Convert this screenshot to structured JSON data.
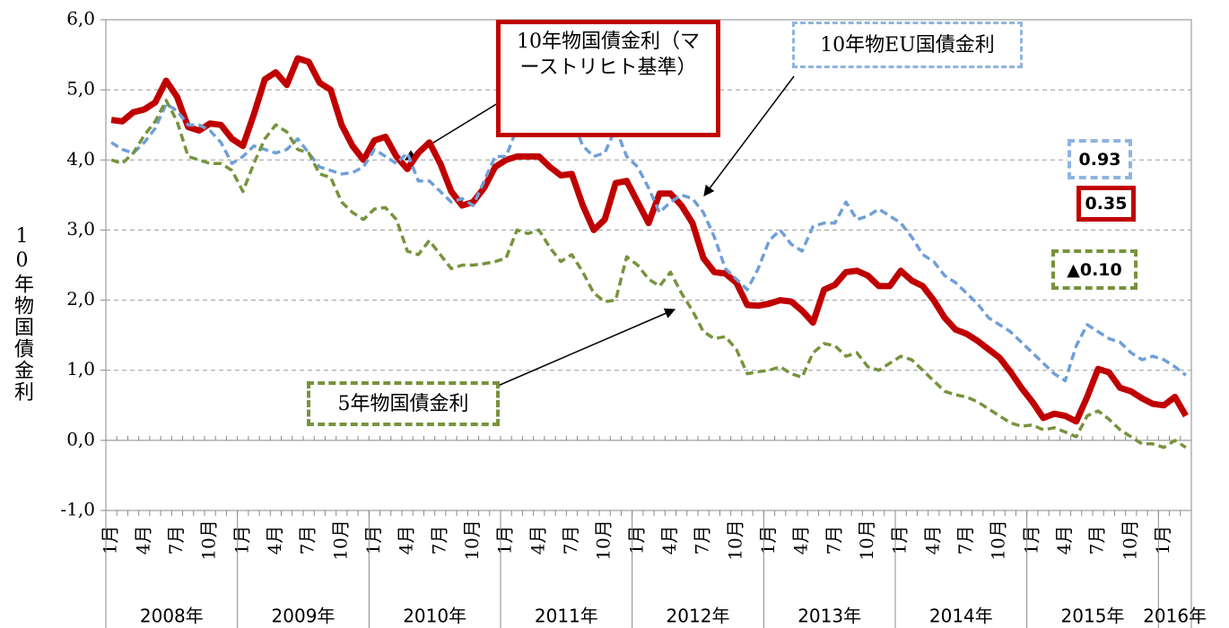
{
  "chart_data": {
    "type": "line",
    "y_label": "10年物国債金利",
    "categories": [
      "1月",
      null,
      null,
      "4月",
      null,
      null,
      "7月",
      null,
      null,
      "10月",
      null,
      null,
      "1月",
      null,
      null,
      "4月",
      null,
      null,
      "7月",
      null,
      null,
      "10月",
      null,
      null,
      "1月",
      null,
      null,
      "4月",
      null,
      null,
      "7月",
      null,
      null,
      "10月",
      null,
      null,
      "1月",
      null,
      null,
      "4月",
      null,
      null,
      "7月",
      null,
      null,
      "10月",
      null,
      null,
      "1月",
      null,
      null,
      "4月",
      null,
      null,
      "7月",
      null,
      null,
      "10月",
      null,
      null,
      "1月",
      null,
      null,
      "4月",
      null,
      null,
      "7月",
      null,
      null,
      "10月",
      null,
      null,
      "1月",
      null,
      null,
      "4月",
      null,
      null,
      "7月",
      null,
      null,
      "10月",
      null,
      null,
      "1月",
      null,
      null,
      "4月",
      null,
      null,
      "7月",
      null,
      null,
      "10月",
      null,
      null,
      "1月",
      null,
      null
    ],
    "year_labels": [
      "2008年",
      "2009年",
      "2010年",
      "2011年",
      "2012年",
      "2013年",
      "2014年",
      "2015年",
      "2016年"
    ],
    "ylim": [
      -1,
      6
    ],
    "yticks": [
      {
        "value": -1,
        "label": "-1,0"
      },
      {
        "value": 0,
        "label": "0,0"
      },
      {
        "value": 1,
        "label": "1,0"
      },
      {
        "value": 2,
        "label": "2,0"
      },
      {
        "value": 3,
        "label": "3,0"
      },
      {
        "value": 4,
        "label": "4,0"
      },
      {
        "value": 5,
        "label": "5,0"
      },
      {
        "value": 6,
        "label": "6,0"
      }
    ],
    "grid": true,
    "series": [
      {
        "name": "10年物国債金利（マーストリヒト基準）",
        "color": "#c00000",
        "dash": false,
        "values": [
          4.57,
          4.55,
          4.68,
          4.72,
          4.82,
          5.13,
          4.9,
          4.47,
          4.42,
          4.52,
          4.5,
          4.3,
          4.2,
          4.65,
          5.15,
          5.25,
          5.07,
          5.45,
          5.4,
          5.1,
          5.0,
          4.5,
          4.2,
          4.0,
          4.28,
          4.33,
          4.05,
          3.87,
          4.1,
          4.25,
          3.95,
          3.55,
          3.35,
          3.4,
          3.6,
          3.9,
          4.0,
          4.05,
          4.05,
          4.05,
          3.9,
          3.78,
          3.8,
          3.35,
          3.0,
          3.15,
          3.67,
          3.7,
          3.4,
          3.1,
          3.52,
          3.52,
          3.35,
          3.1,
          2.6,
          2.4,
          2.38,
          2.25,
          1.93,
          1.92,
          1.95,
          2.0,
          1.98,
          1.85,
          1.68,
          2.15,
          2.22,
          2.4,
          2.42,
          2.35,
          2.2,
          2.2,
          2.42,
          2.28,
          2.2,
          2.0,
          1.75,
          1.58,
          1.52,
          1.42,
          1.3,
          1.18,
          0.98,
          0.75,
          0.55,
          0.32,
          0.38,
          0.35,
          0.27,
          0.62,
          1.02,
          0.97,
          0.75,
          0.7,
          0.6,
          0.52,
          0.5,
          0.62,
          0.35
        ],
        "value_labels": [
          null,
          null,
          null,
          null,
          null,
          null,
          null,
          null,
          null,
          null,
          null,
          null,
          null,
          null,
          null,
          null,
          null,
          null,
          null,
          null,
          null,
          null,
          null,
          null,
          null,
          null,
          null,
          null,
          null,
          null,
          null,
          null,
          null,
          null,
          null,
          null,
          null,
          null,
          null,
          null,
          null,
          null,
          null,
          null,
          null,
          null,
          null,
          null,
          null,
          null,
          null,
          null,
          null,
          null,
          null,
          null,
          null,
          null,
          null,
          null,
          null,
          null,
          null,
          null,
          null,
          null,
          null,
          null,
          null,
          null,
          null,
          null,
          null,
          null,
          null,
          null,
          null,
          null,
          null,
          null,
          null,
          null,
          null,
          null,
          null,
          null,
          null,
          null,
          null,
          null,
          null,
          null,
          null,
          null,
          null,
          null,
          null,
          null,
          "0.35"
        ]
      },
      {
        "name": "10年物EU国債金利",
        "color": "#6f9fd8",
        "dash": true,
        "values": [
          4.25,
          4.15,
          4.1,
          4.25,
          4.45,
          4.8,
          4.7,
          4.5,
          4.5,
          4.42,
          4.25,
          3.95,
          4.05,
          4.2,
          4.15,
          4.1,
          4.15,
          4.3,
          4.1,
          3.9,
          3.85,
          3.8,
          3.82,
          3.9,
          4.15,
          4.05,
          3.95,
          4.1,
          3.7,
          3.7,
          3.55,
          3.4,
          3.45,
          3.35,
          3.7,
          4.05,
          4.05,
          4.45,
          4.5,
          4.65,
          4.4,
          4.35,
          4.6,
          4.2,
          4.05,
          4.1,
          4.45,
          4.05,
          3.9,
          3.6,
          3.25,
          3.4,
          3.5,
          3.45,
          3.25,
          2.9,
          2.45,
          2.3,
          2.15,
          2.45,
          2.85,
          3.0,
          2.8,
          2.7,
          3.05,
          3.1,
          3.1,
          3.4,
          3.15,
          3.2,
          3.3,
          3.2,
          3.1,
          2.9,
          2.65,
          2.55,
          2.35,
          2.25,
          2.1,
          1.95,
          1.75,
          1.65,
          1.55,
          1.4,
          1.25,
          1.1,
          0.95,
          0.85,
          1.35,
          1.65,
          1.55,
          1.45,
          1.4,
          1.25,
          1.15,
          1.2,
          1.15,
          1.05,
          0.93
        ],
        "value_labels": [
          null,
          null,
          null,
          null,
          null,
          null,
          null,
          null,
          null,
          null,
          null,
          null,
          null,
          null,
          null,
          null,
          null,
          null,
          null,
          null,
          null,
          null,
          null,
          null,
          null,
          null,
          null,
          null,
          null,
          null,
          null,
          null,
          null,
          null,
          null,
          null,
          null,
          null,
          null,
          null,
          null,
          null,
          null,
          null,
          null,
          null,
          null,
          null,
          null,
          null,
          null,
          null,
          null,
          null,
          null,
          null,
          null,
          null,
          null,
          null,
          null,
          null,
          null,
          null,
          null,
          null,
          null,
          null,
          null,
          null,
          null,
          null,
          null,
          null,
          null,
          null,
          null,
          null,
          null,
          null,
          null,
          null,
          null,
          null,
          null,
          null,
          null,
          null,
          null,
          null,
          null,
          null,
          null,
          null,
          null,
          null,
          null,
          null,
          "0.93"
        ]
      },
      {
        "name": "5年物国債金利",
        "color": "#77933c",
        "dash": true,
        "values": [
          4.0,
          3.95,
          4.1,
          4.35,
          4.55,
          4.85,
          4.55,
          4.05,
          4.0,
          3.95,
          3.95,
          3.85,
          3.55,
          3.95,
          4.3,
          4.5,
          4.4,
          4.15,
          4.1,
          3.8,
          3.75,
          3.4,
          3.25,
          3.15,
          3.3,
          3.32,
          3.15,
          2.7,
          2.65,
          2.85,
          2.65,
          2.45,
          2.5,
          2.5,
          2.52,
          2.55,
          2.6,
          3.0,
          2.95,
          3.0,
          2.75,
          2.55,
          2.65,
          2.4,
          2.1,
          1.98,
          2.0,
          2.62,
          2.5,
          2.3,
          2.2,
          2.4,
          2.1,
          1.85,
          1.55,
          1.45,
          1.48,
          1.3,
          0.95,
          0.98,
          1.0,
          1.05,
          0.95,
          0.9,
          1.25,
          1.38,
          1.35,
          1.2,
          1.25,
          1.05,
          1.0,
          1.1,
          1.2,
          1.15,
          1.0,
          0.85,
          0.7,
          0.65,
          0.62,
          0.55,
          0.45,
          0.35,
          0.25,
          0.2,
          0.22,
          0.15,
          0.18,
          0.12,
          0.05,
          0.35,
          0.42,
          0.3,
          0.15,
          0.05,
          -0.05,
          -0.05,
          -0.1,
          0.0,
          -0.1
        ],
        "value_labels": [
          null,
          null,
          null,
          null,
          null,
          null,
          null,
          null,
          null,
          null,
          null,
          null,
          null,
          null,
          null,
          null,
          null,
          null,
          null,
          null,
          null,
          null,
          null,
          null,
          null,
          null,
          null,
          null,
          null,
          null,
          null,
          null,
          null,
          null,
          null,
          null,
          null,
          null,
          null,
          null,
          null,
          null,
          null,
          null,
          null,
          null,
          null,
          null,
          null,
          null,
          null,
          null,
          null,
          null,
          null,
          null,
          null,
          null,
          null,
          null,
          null,
          null,
          null,
          null,
          null,
          null,
          null,
          null,
          null,
          null,
          null,
          null,
          null,
          null,
          null,
          null,
          null,
          null,
          null,
          null,
          null,
          null,
          null,
          null,
          null,
          null,
          null,
          null,
          null,
          null,
          null,
          null,
          null,
          null,
          null,
          null,
          null,
          null,
          "▲0.10"
        ]
      }
    ]
  }
}
